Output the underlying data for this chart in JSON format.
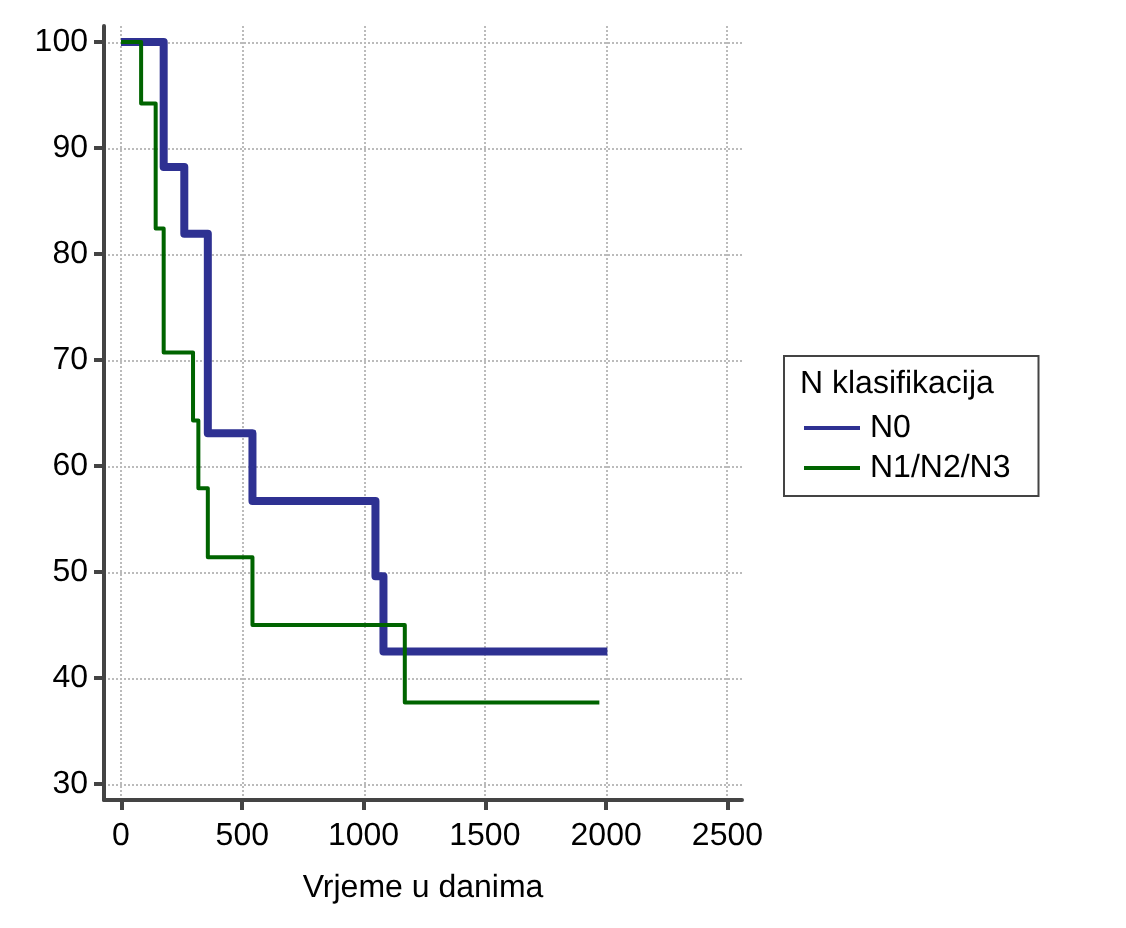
{
  "chart_data": {
    "type": "step",
    "xlabel": "Vrjeme u danima",
    "legend_title": "N klasifikacija",
    "series": [
      {
        "name": "N0",
        "color": "#2e3192",
        "x": [
          0,
          176,
          261,
          358,
          542,
          1049,
          1082,
          2005
        ],
        "values": [
          100,
          88.2,
          81.9,
          63.1,
          56.7,
          49.6,
          42.5,
          42.5
        ]
      },
      {
        "name": "N1/N2/N3",
        "color": "#006400",
        "x": [
          0,
          83,
          143,
          176,
          297,
          319,
          358,
          542,
          1170,
          1972
        ],
        "values": [
          100,
          94.2,
          82.4,
          70.7,
          64.3,
          57.9,
          51.4,
          45.0,
          37.7,
          37.7
        ]
      }
    ],
    "xlim": [
      -70,
      2560
    ],
    "xticks": [
      0,
      500,
      1000,
      1500,
      2000,
      2500
    ],
    "ylim": [
      28.5,
      101.5
    ],
    "yticks": [
      30,
      40,
      50,
      60,
      70,
      80,
      90,
      100
    ],
    "grid": true,
    "legend": "right",
    "marker": "none",
    "line_style": "solid"
  }
}
